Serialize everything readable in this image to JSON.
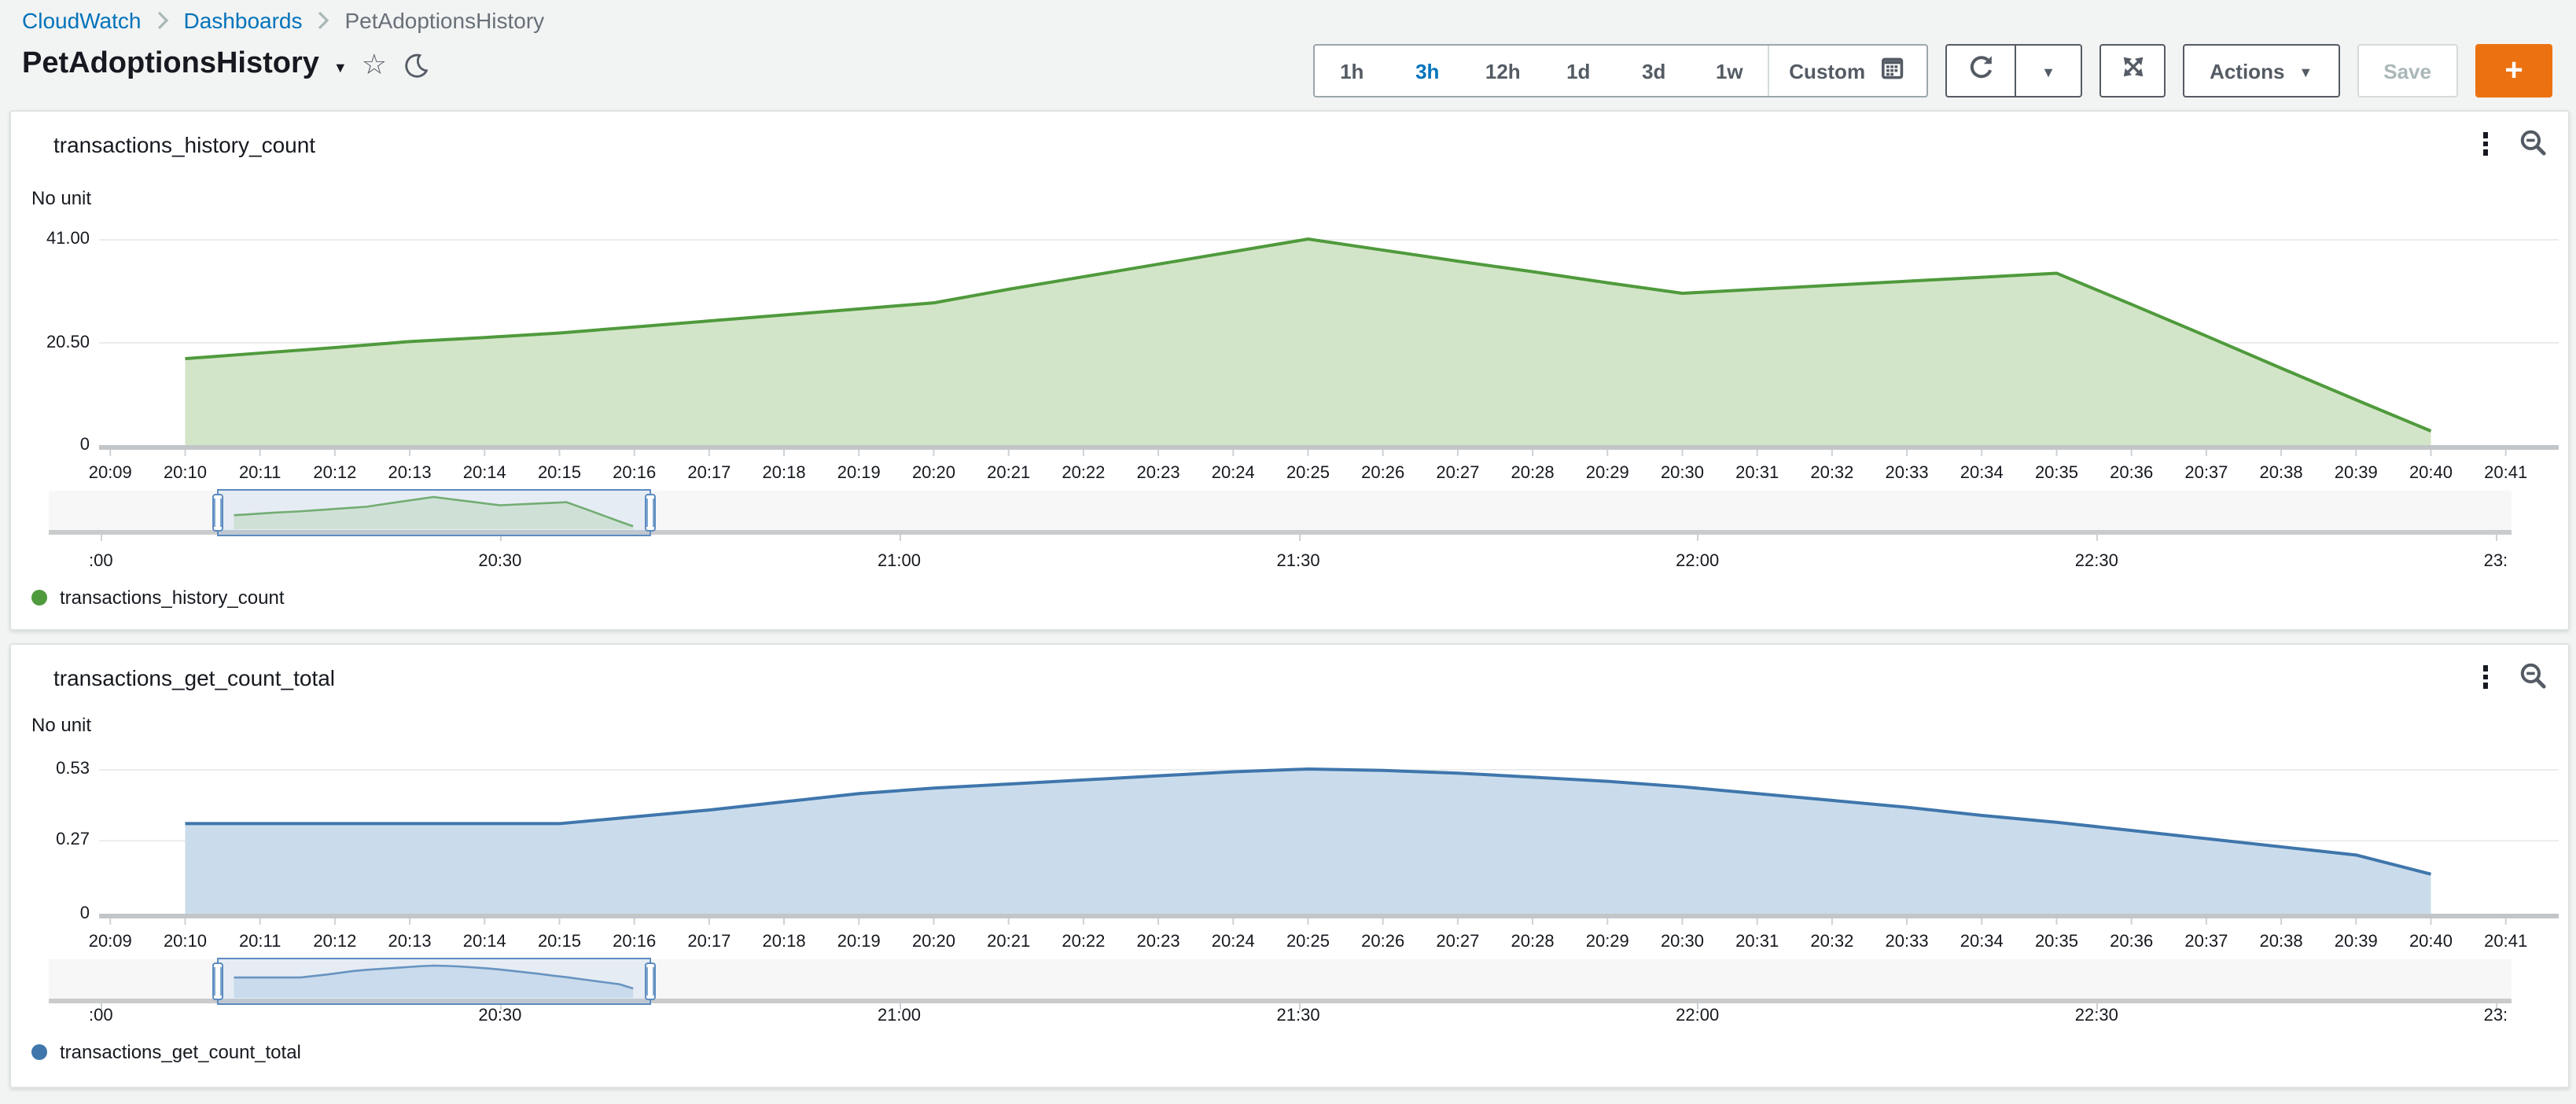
{
  "breadcrumb": {
    "items": [
      "CloudWatch",
      "Dashboards",
      "PetAdoptionsHistory"
    ]
  },
  "page": {
    "title": "PetAdoptionsHistory"
  },
  "toolbar": {
    "ranges": [
      "1h",
      "3h",
      "12h",
      "1d",
      "3d",
      "1w"
    ],
    "selected_range": "3h",
    "custom_label": "Custom",
    "actions_label": "Actions",
    "save_label": "Save",
    "add_label": "+"
  },
  "colors": {
    "link_blue": "#0073bb",
    "accent_orange": "#ec7211",
    "green_line": "#4f9a3c",
    "green_fill": "#d3e5c8",
    "blue_line": "#3f76ac",
    "blue_fill": "#cadcec",
    "brush_blue": "#5c8bc0"
  },
  "chart_data": [
    {
      "type": "area",
      "title": "transactions_history_count",
      "unit_label": "No unit",
      "legend": "transactions_history_count",
      "color": "#4f9a3c",
      "fill": "#d3e5c8",
      "ylim": [
        0,
        41
      ],
      "yticks": [
        {
          "value": 0,
          "label": "0"
        },
        {
          "value": 20.5,
          "label": "20.50"
        },
        {
          "value": 41,
          "label": "41.00"
        }
      ],
      "x": [
        "20:10",
        "20:11",
        "20:12",
        "20:13",
        "20:14",
        "20:15",
        "20:16",
        "20:17",
        "20:18",
        "20:19",
        "20:20",
        "20:21",
        "20:22",
        "20:23",
        "20:24",
        "20:25",
        "20:26",
        "20:27",
        "20:28",
        "20:29",
        "20:30",
        "20:31",
        "20:32",
        "20:33",
        "20:34",
        "20:35",
        "20:36",
        "20:37",
        "20:38",
        "20:39",
        "20:40"
      ],
      "values": [
        17.2,
        18.3,
        19.4,
        20.6,
        21.4,
        22.3,
        23.5,
        24.7,
        25.9,
        27.1,
        28.3,
        31,
        33.5,
        36,
        38.5,
        41,
        38.8,
        36.6,
        34.5,
        32.3,
        30.2,
        31,
        31.8,
        32.6,
        33.4,
        34.2,
        28,
        21.7,
        15.3,
        9,
        2.8
      ],
      "x_axis_labels": [
        "20:09",
        "20:10",
        "20:11",
        "20:12",
        "20:13",
        "20:14",
        "20:15",
        "20:16",
        "20:17",
        "20:18",
        "20:19",
        "20:20",
        "20:21",
        "20:22",
        "20:23",
        "20:24",
        "20:25",
        "20:26",
        "20:27",
        "20:28",
        "20:29",
        "20:30",
        "20:31",
        "20:32",
        "20:33",
        "20:34",
        "20:35",
        "20:36",
        "20:37",
        "20:38",
        "20:39",
        "20:40",
        "20:41"
      ],
      "timeline": {
        "labels": [
          {
            "minute": 0,
            "label": ":00"
          },
          {
            "minute": 30,
            "label": "20:30"
          },
          {
            "minute": 60,
            "label": "21:00"
          },
          {
            "minute": 90,
            "label": "21:30"
          },
          {
            "minute": 120,
            "label": "22:00"
          },
          {
            "minute": 150,
            "label": "22:30"
          },
          {
            "minute": 180,
            "label": "23:"
          }
        ],
        "brush_from_minute": 8.7,
        "brush_to_minute": 41.3
      }
    },
    {
      "type": "area",
      "title": "transactions_get_count_total",
      "unit_label": "No unit",
      "legend": "transactions_get_count_total",
      "color": "#3f76ac",
      "fill": "#cadcec",
      "ylim": [
        0,
        0.53
      ],
      "yticks": [
        {
          "value": 0,
          "label": "0"
        },
        {
          "value": 0.27,
          "label": "0.27"
        },
        {
          "value": 0.53,
          "label": "0.53"
        }
      ],
      "x": [
        "20:10",
        "20:11",
        "20:12",
        "20:13",
        "20:14",
        "20:15",
        "20:16",
        "20:17",
        "20:18",
        "20:19",
        "20:20",
        "20:21",
        "20:22",
        "20:23",
        "20:24",
        "20:25",
        "20:26",
        "20:27",
        "20:28",
        "20:29",
        "20:30",
        "20:31",
        "20:32",
        "20:33",
        "20:34",
        "20:35",
        "20:36",
        "20:37",
        "20:38",
        "20:39",
        "20:40"
      ],
      "values": [
        0.33,
        0.33,
        0.33,
        0.33,
        0.33,
        0.33,
        0.355,
        0.38,
        0.41,
        0.44,
        0.46,
        0.475,
        0.49,
        0.505,
        0.52,
        0.53,
        0.525,
        0.515,
        0.5,
        0.485,
        0.465,
        0.44,
        0.415,
        0.39,
        0.36,
        0.335,
        0.305,
        0.275,
        0.245,
        0.215,
        0.145
      ],
      "x_axis_labels": [
        "20:09",
        "20:10",
        "20:11",
        "20:12",
        "20:13",
        "20:14",
        "20:15",
        "20:16",
        "20:17",
        "20:18",
        "20:19",
        "20:20",
        "20:21",
        "20:22",
        "20:23",
        "20:24",
        "20:25",
        "20:26",
        "20:27",
        "20:28",
        "20:29",
        "20:30",
        "20:31",
        "20:32",
        "20:33",
        "20:34",
        "20:35",
        "20:36",
        "20:37",
        "20:38",
        "20:39",
        "20:40",
        "20:41"
      ],
      "timeline": {
        "labels": [
          {
            "minute": 0,
            "label": ":00"
          },
          {
            "minute": 30,
            "label": "20:30"
          },
          {
            "minute": 60,
            "label": "21:00"
          },
          {
            "minute": 90,
            "label": "21:30"
          },
          {
            "minute": 120,
            "label": "22:00"
          },
          {
            "minute": 150,
            "label": "22:30"
          },
          {
            "minute": 180,
            "label": "23:"
          }
        ],
        "brush_from_minute": 8.7,
        "brush_to_minute": 41.3
      }
    }
  ]
}
